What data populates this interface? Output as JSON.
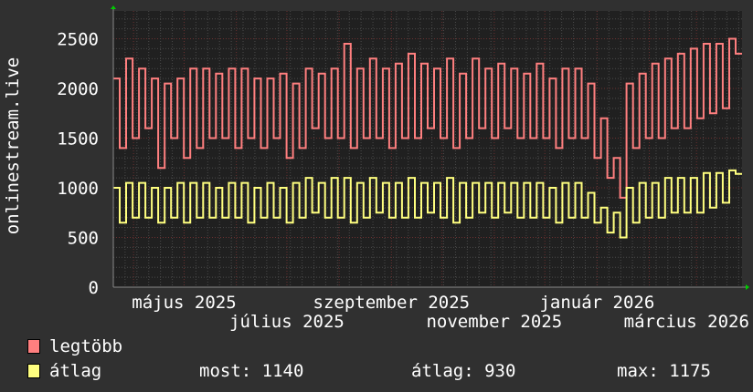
{
  "chart_data": {
    "type": "line",
    "ylabel": "onlinestream.live",
    "ylim": [
      0,
      2780
    ],
    "y_ticks": [
      "0",
      "500",
      "1000",
      "1500",
      "2000",
      "2500"
    ],
    "y_tick_values": [
      0,
      500,
      1000,
      1500,
      2000,
      2500
    ],
    "xlim": [
      "2025-03-20",
      "2026-03-28"
    ],
    "x_ticks": [
      {
        "label": "május 2025",
        "date": "2025-05-01"
      },
      {
        "label": "július 2025",
        "date": "2025-07-01"
      },
      {
        "label": "szeptember 2025",
        "date": "2025-09-01"
      },
      {
        "label": "november 2025",
        "date": "2025-11-01"
      },
      {
        "label": "január 2026",
        "date": "2026-01-01"
      },
      {
        "label": "március 2026",
        "date": "2026-03-01"
      }
    ],
    "grid": true,
    "legend_position": "bottom-left",
    "series": [
      {
        "name": "legtöbb",
        "color": "#FF7F7F",
        "values": [
          2100,
          1400,
          2300,
          1500,
          2200,
          1600,
          2100,
          1200,
          2050,
          1500,
          2100,
          1300,
          2200,
          1400,
          2200,
          1500,
          2150,
          1500,
          2200,
          1400,
          2200,
          1500,
          2100,
          1400,
          2100,
          1500,
          2150,
          1300,
          2050,
          1400,
          2200,
          1600,
          2150,
          1500,
          2200,
          1500,
          2450,
          1400,
          2200,
          1500,
          2300,
          1500,
          2200,
          1400,
          2250,
          1500,
          2350,
          1500,
          2250,
          1600,
          2200,
          1500,
          2300,
          1400,
          2150,
          1500,
          2300,
          1600,
          2200,
          1500,
          2250,
          1600,
          2200,
          1500,
          2150,
          1500,
          2250,
          1500,
          2100,
          1400,
          2200,
          1500,
          2200,
          1500,
          2050,
          1300,
          1700,
          1100,
          1300,
          900,
          2050,
          1400,
          2150,
          1500,
          2250,
          1500,
          2300,
          1600,
          2350,
          1600,
          2400,
          1700,
          2450,
          1750,
          2450,
          1800,
          2500,
          2350
        ]
      },
      {
        "name": "átlag",
        "color": "#FFFF7F",
        "values": [
          1000,
          650,
          1050,
          700,
          1050,
          700,
          1000,
          650,
          1000,
          700,
          1050,
          650,
          1050,
          700,
          1050,
          700,
          1000,
          700,
          1050,
          700,
          1050,
          650,
          1000,
          700,
          1050,
          700,
          1000,
          650,
          1050,
          700,
          1100,
          750,
          1050,
          700,
          1100,
          700,
          1100,
          650,
          1050,
          700,
          1100,
          750,
          1050,
          700,
          1050,
          700,
          1100,
          700,
          1050,
          750,
          1050,
          700,
          1100,
          650,
          1050,
          700,
          1050,
          750,
          1050,
          700,
          1050,
          750,
          1050,
          700,
          1050,
          700,
          1050,
          700,
          1000,
          650,
          1050,
          700,
          1050,
          700,
          950,
          650,
          800,
          550,
          750,
          500,
          1000,
          650,
          1050,
          700,
          1050,
          700,
          1100,
          750,
          1100,
          750,
          1100,
          750,
          1150,
          800,
          1150,
          850,
          1175,
          1140
        ]
      }
    ]
  },
  "legend": {
    "items": [
      {
        "label": "legtöbb",
        "color": "#FF7F7F"
      },
      {
        "label": "átlag",
        "color": "#FFFF7F"
      }
    ],
    "stats": {
      "most": "most: 1140",
      "atlag": "átlag: 930",
      "max": "max: 1175"
    }
  }
}
